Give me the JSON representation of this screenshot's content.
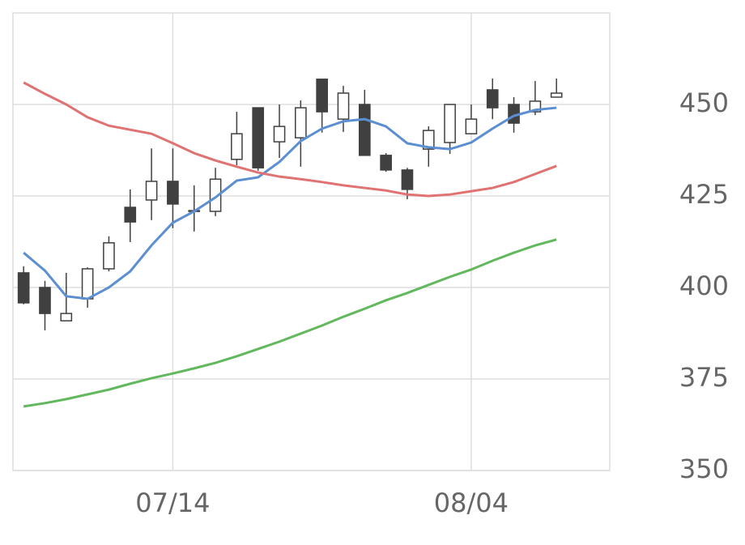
{
  "chart_data": {
    "type": "candlestick",
    "categories": [
      null,
      null,
      null,
      null,
      null,
      null,
      null,
      "07/14",
      null,
      null,
      null,
      null,
      null,
      null,
      null,
      null,
      null,
      null,
      null,
      null,
      null,
      "08/04",
      null,
      null,
      null,
      null
    ],
    "open": [
      404,
      400,
      390.9,
      396.9,
      405.1,
      421.9,
      423.9,
      429,
      420.8,
      420.8,
      435,
      449.1,
      439.8,
      440.9,
      456.9,
      446,
      450,
      436.1,
      432.1,
      437.8,
      439.6,
      442,
      454,
      450,
      448,
      452
    ],
    "high": [
      405.8,
      401.8,
      404,
      405.5,
      414,
      426.8,
      438,
      438,
      427.9,
      432.7,
      448,
      449.1,
      450,
      451.1,
      456.9,
      455.1,
      454,
      436.7,
      432.7,
      444,
      450,
      450,
      457.1,
      452,
      456.4,
      457.1
    ],
    "low": [
      395.4,
      388.3,
      390.9,
      394.5,
      404.4,
      412.4,
      418.4,
      416.2,
      415.3,
      419.5,
      433.4,
      431.9,
      435.4,
      433,
      442.3,
      442.5,
      436.1,
      431.6,
      424.1,
      433,
      436.5,
      442,
      446,
      442.3,
      447.1,
      452
    ],
    "close": [
      395.8,
      392.9,
      392.9,
      405.1,
      412.2,
      417.9,
      429,
      422.8,
      421,
      429.6,
      442,
      432.7,
      444,
      449.1,
      448,
      453.1,
      436.1,
      432.1,
      426.8,
      442.9,
      450,
      446,
      449.1,
      444.9,
      450.9,
      453.1
    ],
    "up_color": "#ffffff",
    "down_color": "#404040",
    "moving_averages": [
      {
        "color": "#5b8fd2",
        "values": [
          409.5,
          404.6,
          397.6,
          396.9,
          400,
          404.4,
          411.5,
          417.7,
          420.8,
          424.6,
          429.2,
          430.1,
          434.3,
          440,
          443.4,
          445.4,
          446,
          444,
          439.4,
          438.3,
          437.8,
          439.6,
          443.4,
          446.9,
          448.5,
          449.1
        ]
      },
      {
        "color": "#e07272",
        "values": [
          456,
          452.9,
          450,
          446.5,
          444.2,
          443.1,
          442,
          439.4,
          436.7,
          434.7,
          433,
          431.4,
          430.3,
          429.6,
          428.8,
          427.9,
          427.2,
          426.5,
          425.4,
          425,
          425.4,
          426.3,
          427.2,
          428.8,
          431,
          433.2
        ]
      },
      {
        "color": "#62b85c",
        "values": [
          367.5,
          368.4,
          369.5,
          370.8,
          372.1,
          373.7,
          375.2,
          376.5,
          377.9,
          379.4,
          381.2,
          383.2,
          385.2,
          387.4,
          389.6,
          392,
          394.2,
          396.5,
          398.5,
          400.7,
          402.9,
          404.9,
          407.3,
          409.5,
          411.5,
          413.1
        ]
      }
    ],
    "ylim": [
      350,
      475
    ],
    "yticks": [
      350,
      375,
      400,
      425,
      450
    ],
    "grid": true
  }
}
